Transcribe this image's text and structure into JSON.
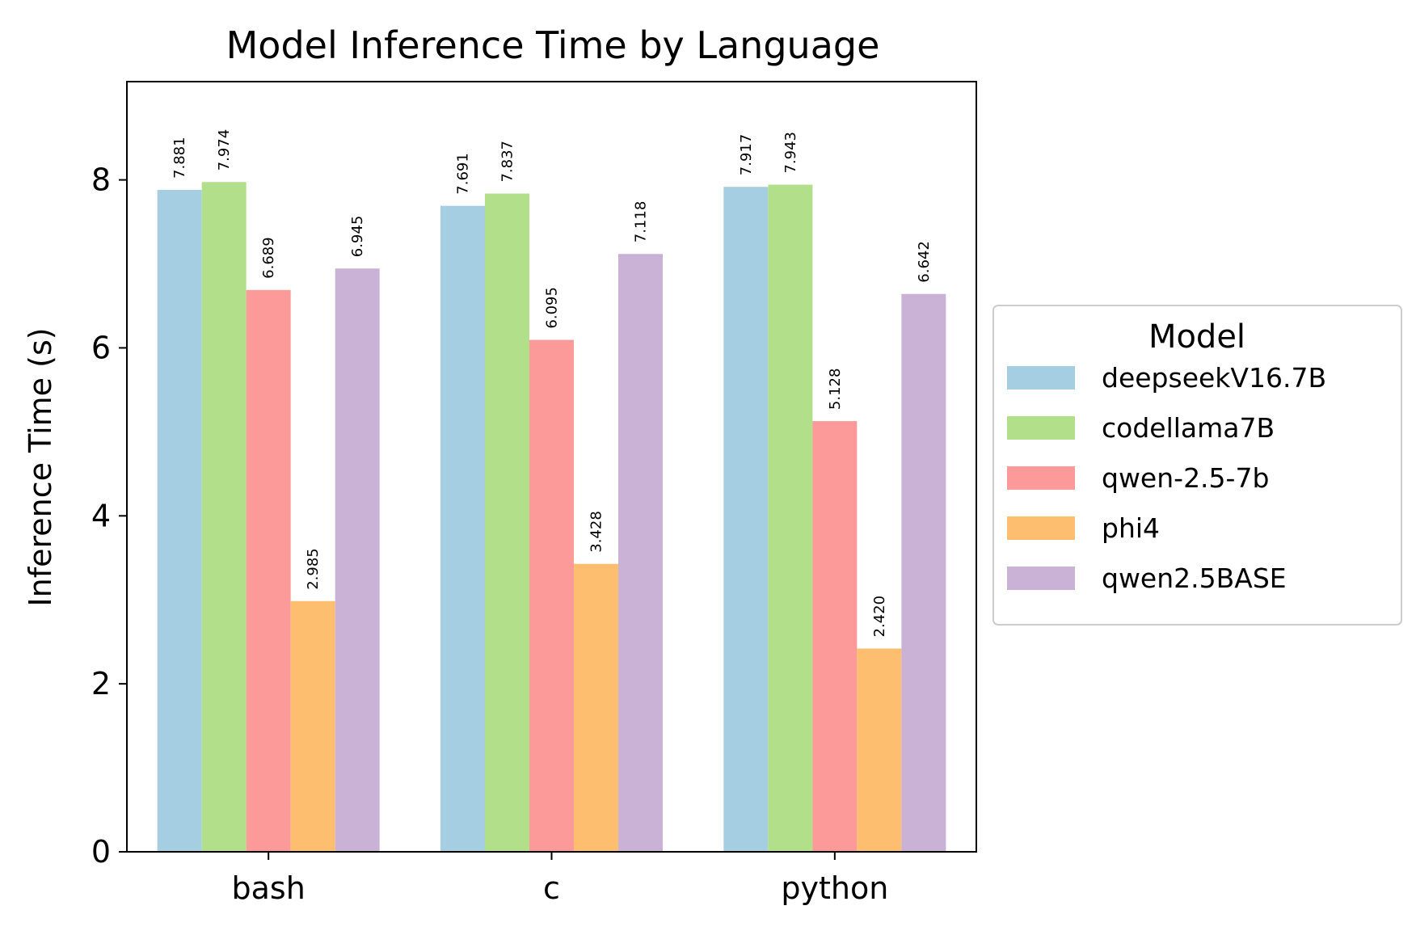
{
  "chart_data": {
    "type": "bar",
    "title": "Model Inference Time by Language",
    "xlabel": "",
    "ylabel": "Inference Time (s)",
    "categories": [
      "bash",
      "c",
      "python"
    ],
    "series": [
      {
        "name": "deepseekV16.7B",
        "color": "#a6cee3",
        "values": [
          7.881,
          7.691,
          7.917
        ],
        "labels": [
          "7.881",
          "7.691",
          "7.917"
        ]
      },
      {
        "name": "codellama7B",
        "color": "#b2df8a",
        "values": [
          7.974,
          7.837,
          7.943
        ],
        "labels": [
          "7.974",
          "7.837",
          "7.943"
        ]
      },
      {
        "name": "qwen-2.5-7b",
        "color": "#fb9a99",
        "values": [
          6.689,
          6.095,
          5.128
        ],
        "labels": [
          "6.689",
          "6.095",
          "5.128"
        ]
      },
      {
        "name": "phi4",
        "color": "#fdbf6f",
        "values": [
          2.985,
          3.428,
          2.42
        ],
        "labels": [
          "2.985",
          "3.428",
          "2.420"
        ]
      },
      {
        "name": "qwen2.5BASE",
        "color": "#cab2d6",
        "values": [
          6.945,
          7.118,
          6.642
        ],
        "labels": [
          "6.945",
          "7.118",
          "6.642"
        ]
      }
    ],
    "ylim": [
      0,
      9.17
    ],
    "yticks": [
      0,
      2,
      4,
      6,
      8
    ],
    "grid": false,
    "legend": {
      "title": "Model",
      "placement": "outside-right"
    }
  }
}
